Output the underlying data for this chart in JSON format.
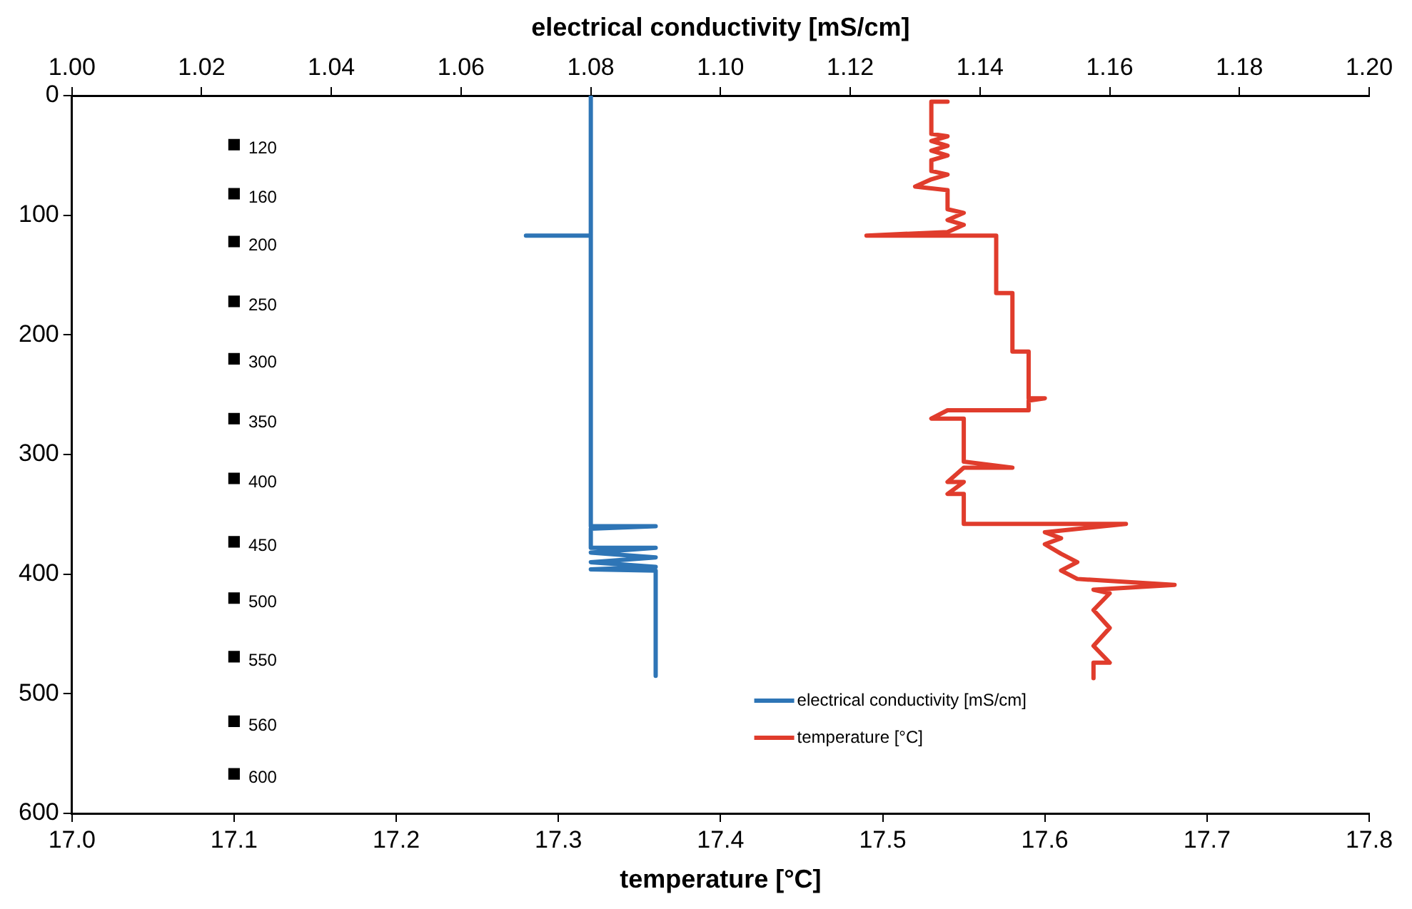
{
  "chart_data": {
    "type": "line",
    "xlabel": "temperature [°C]",
    "x2label": "electrical conductivity [mS/cm]",
    "xlim": [
      17.0,
      17.8
    ],
    "xticks": [
      {
        "value": 17.0,
        "label": "17.0"
      },
      {
        "value": 17.1,
        "label": "17.1"
      },
      {
        "value": 17.2,
        "label": "17.2"
      },
      {
        "value": 17.3,
        "label": "17.3"
      },
      {
        "value": 17.4,
        "label": "17.4"
      },
      {
        "value": 17.5,
        "label": "17.5"
      },
      {
        "value": 17.6,
        "label": "17.6"
      },
      {
        "value": 17.7,
        "label": "17.7"
      },
      {
        "value": 17.8,
        "label": "17.8"
      }
    ],
    "x2lim": [
      1.0,
      1.2
    ],
    "x2ticks": [
      {
        "value": 1.0,
        "label": "1.00"
      },
      {
        "value": 1.02,
        "label": "1.02"
      },
      {
        "value": 1.04,
        "label": "1.04"
      },
      {
        "value": 1.06,
        "label": "1.06"
      },
      {
        "value": 1.08,
        "label": "1.08"
      },
      {
        "value": 1.1,
        "label": "1.10"
      },
      {
        "value": 1.12,
        "label": "1.12"
      },
      {
        "value": 1.14,
        "label": "1.14"
      },
      {
        "value": 1.16,
        "label": "1.16"
      },
      {
        "value": 1.18,
        "label": "1.18"
      },
      {
        "value": 1.2,
        "label": "1.20"
      }
    ],
    "ylim": [
      600,
      0
    ],
    "yticks": [
      0,
      100,
      200,
      300,
      400,
      500,
      600
    ],
    "grid": false,
    "legend": "bottom right",
    "annotations": [
      "120",
      "160",
      "200",
      "250",
      "300",
      "350",
      "400",
      "450",
      "500",
      "550",
      "560",
      "600"
    ],
    "series": [
      {
        "type": "scatter",
        "marker": "square",
        "color": "#000000",
        "x": [
          17.1,
          17.1,
          17.1,
          17.1,
          17.1,
          17.1,
          17.1,
          17.1,
          17.1,
          17.1,
          17.1,
          17.1
        ],
        "values": [
          41,
          82,
          122,
          172,
          220,
          270,
          320,
          373,
          420,
          469,
          523,
          567
        ]
      },
      {
        "axis": "x2",
        "marker": "none",
        "line_style": "solid",
        "name": "electrical conductivity [mS/cm]",
        "color": "#2e75b6",
        "x": [
          1.08,
          1.08,
          1.07,
          1.08,
          1.08,
          1.09,
          1.08,
          1.08,
          1.09,
          1.08,
          1.09,
          1.08,
          1.09,
          1.08,
          1.09,
          1.09
        ],
        "values": [
          0,
          117,
          117,
          117,
          360,
          360,
          362,
          378,
          378,
          382,
          386,
          390,
          394,
          396,
          397,
          485
        ]
      },
      {
        "marker": "none",
        "line_style": "solid",
        "name": "temperature [°C]",
        "color": "#e03c2c",
        "x": [
          17.53,
          17.54,
          17.53,
          17.53,
          17.54,
          17.53,
          17.54,
          17.53,
          17.54,
          17.53,
          17.53,
          17.54,
          17.53,
          17.52,
          17.54,
          17.54,
          17.55,
          17.54,
          17.55,
          17.54,
          17.49,
          17.57,
          17.57,
          17.58,
          17.58,
          17.59,
          17.59,
          17.6,
          17.59,
          17.59,
          17.54,
          17.53,
          17.55,
          17.55,
          17.58,
          17.55,
          17.54,
          17.55,
          17.54,
          17.55,
          17.55,
          17.65,
          17.6,
          17.61,
          17.6,
          17.61,
          17.62,
          17.61,
          17.62,
          17.68,
          17.63,
          17.64,
          17.63,
          17.64,
          17.63,
          17.64,
          17.63,
          17.63
        ],
        "values": [
          5,
          5,
          5,
          32,
          34,
          38,
          42,
          46,
          50,
          54,
          63,
          66,
          70,
          76,
          79,
          95,
          98,
          104,
          108,
          114,
          117,
          117,
          165,
          165,
          214,
          214,
          253,
          253,
          255,
          263,
          263,
          270,
          270,
          306,
          311,
          311,
          323,
          323,
          333,
          333,
          358,
          358,
          365,
          370,
          375,
          383,
          390,
          397,
          404,
          409,
          413,
          416,
          430,
          445,
          460,
          474,
          474,
          487
        ]
      }
    ]
  }
}
